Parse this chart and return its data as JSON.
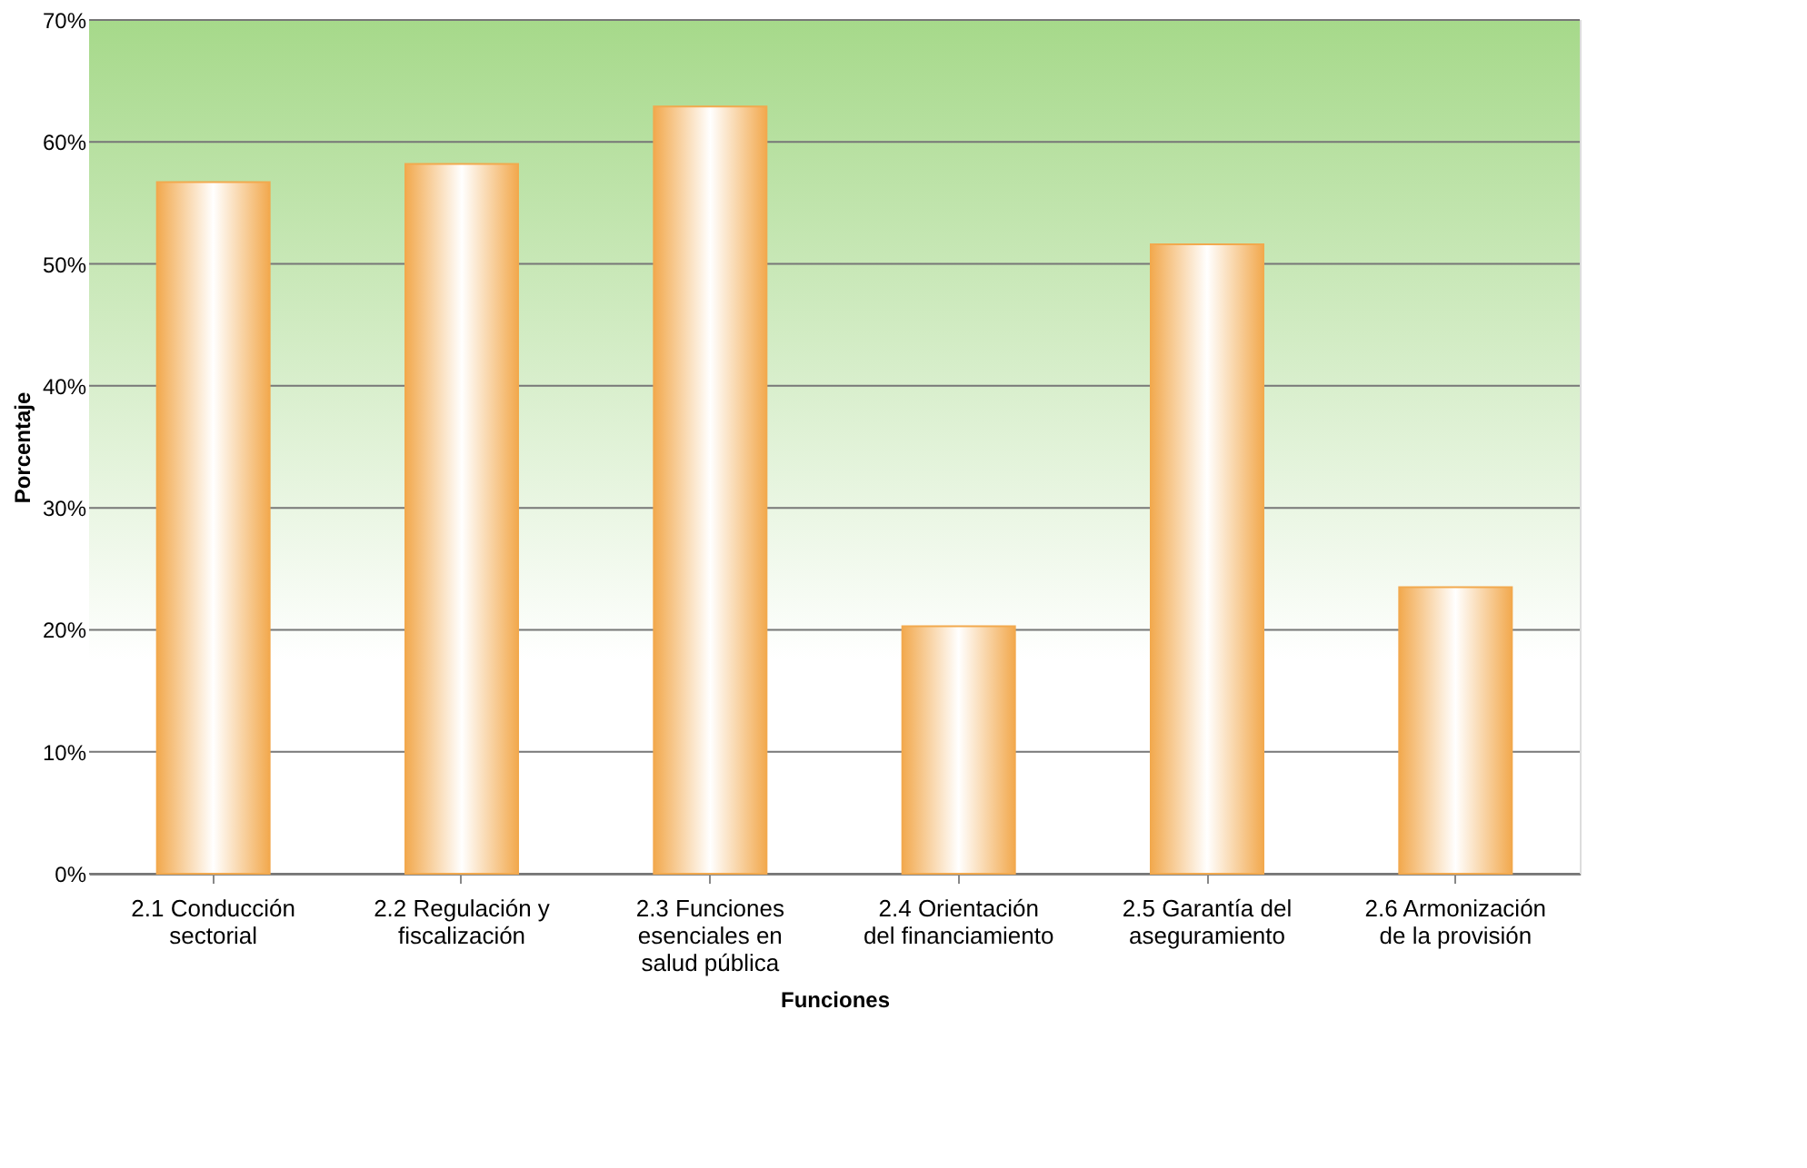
{
  "chart_data": {
    "type": "bar",
    "xlabel": "Funciones",
    "ylabel": "Porcentaje",
    "categories": [
      "2.1 Conducción\nsectorial",
      "2.2 Regulación y\nfiscalización",
      "2.3 Funciones\nesenciales en\nsalud pública",
      "2.4 Orientación\ndel financiamiento",
      "2.5 Garantía del\naseguramiento",
      "2.6 Armonización\nde la provisión"
    ],
    "values": [
      56.7,
      58.2,
      62.9,
      20.3,
      51.6,
      23.5
    ],
    "color": "#f2a94e",
    "ylim": [
      0,
      70
    ],
    "yticks": [
      {
        "value": 0,
        "label": "0%"
      },
      {
        "value": 10,
        "label": "10%"
      },
      {
        "value": 20,
        "label": "20%"
      },
      {
        "value": 30,
        "label": "30%"
      },
      {
        "value": 40,
        "label": "40%"
      },
      {
        "value": 50,
        "label": "50%"
      },
      {
        "value": 60,
        "label": "60%"
      },
      {
        "value": 70,
        "label": "70%"
      }
    ],
    "grid": "y"
  }
}
